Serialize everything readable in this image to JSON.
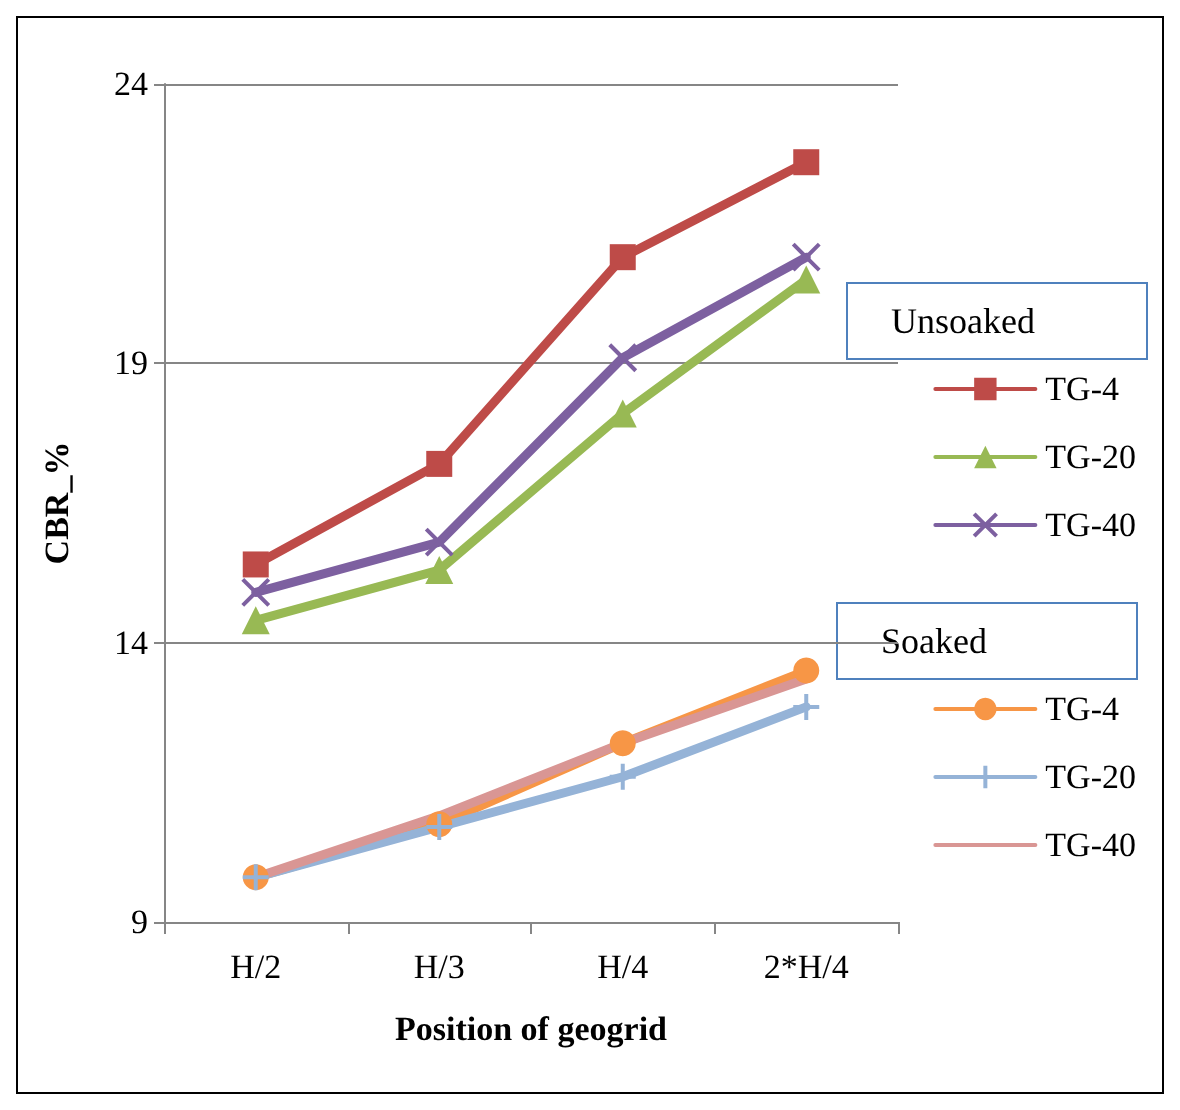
{
  "chart_data": {
    "type": "line",
    "xlabel": "Position of geogrid",
    "ylabel": "CBR_%",
    "categories": [
      "H/2",
      "H/3",
      "H/4",
      "2*H/4"
    ],
    "ylim": [
      9,
      24
    ],
    "yticks": [
      9,
      14,
      19,
      24
    ],
    "grid": "y",
    "legend": "right",
    "annotations": [
      "Unsoaked",
      "Soaked"
    ],
    "series": [
      {
        "name": "TG-4",
        "color": "#be4b48",
        "marker": "square",
        "values": [
          15.4,
          17.2,
          20.9,
          22.6
        ]
      },
      {
        "name": "TG-20",
        "color": "#98b954",
        "marker": "triangle",
        "values": [
          14.4,
          15.3,
          18.1,
          20.5
        ]
      },
      {
        "name": "TG-40",
        "color": "#7d60a0",
        "marker": "cross",
        "values": [
          14.9,
          15.8,
          19.1,
          20.9
        ]
      },
      {
        "name": "TG-4",
        "color": "#f79646",
        "marker": "circle",
        "values": [
          9.8,
          10.75,
          12.2,
          13.5
        ]
      },
      {
        "name": "TG-20",
        "color": "#95b3d7",
        "marker": "plus",
        "values": [
          9.8,
          10.7,
          11.6,
          12.85
        ]
      },
      {
        "name": "TG-40",
        "color": "#d99694",
        "marker": "none",
        "values": [
          9.8,
          10.9,
          12.2,
          13.35
        ]
      }
    ]
  }
}
